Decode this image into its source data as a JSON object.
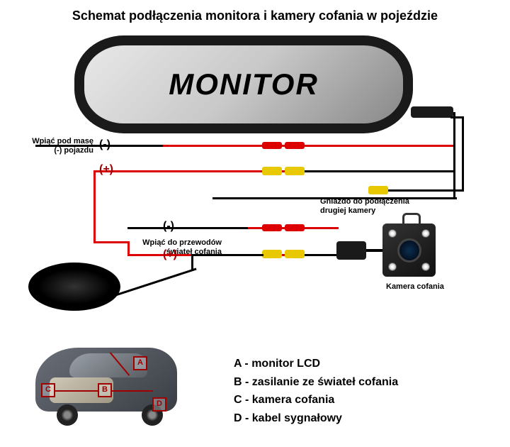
{
  "title": "Schemat podłączenia monitora i kamery cofania w pojeździe",
  "monitor_label": "MONITOR",
  "labels": {
    "mass": "Wpiąć pod masę\n(-) pojazdu",
    "reverse": "Wpiąć do przewodów\nświateł cofania",
    "second_cam": "Gniazdo do podłączenia\ndrugiej kamery",
    "camera": "Kamera cofania"
  },
  "polarity": {
    "minus": "(-)",
    "plus": "(+)"
  },
  "legend": {
    "A": "monitor LCD",
    "B": "zasilanie ze świateł cofania",
    "C": "kamera cofania",
    "D": "kabel sygnałowy"
  },
  "colors": {
    "wire_pos": "#d00000",
    "wire_sig": "#e8c800",
    "wire_neg": "#000000",
    "bg": "#ffffff"
  }
}
